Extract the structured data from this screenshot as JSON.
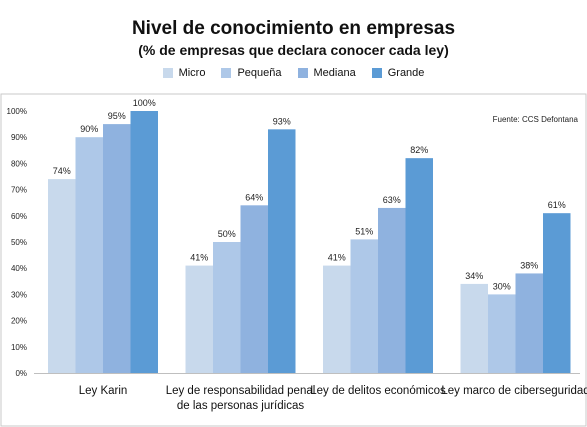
{
  "chart_data": {
    "type": "bar",
    "title": "Nivel de conocimiento en empresas",
    "subtitle": "(% de empresas que declara conocer cada ley)",
    "source": "Fuente: CCS Defontana",
    "categories": [
      [
        "Ley Karin"
      ],
      [
        "Ley de responsabilidad penal",
        "de las personas jurídicas"
      ],
      [
        "Ley de delitos económicos"
      ],
      [
        "Ley marco de ciberseguridad"
      ]
    ],
    "series": [
      {
        "name": "Micro",
        "color": "#c8d9ec",
        "values": [
          74,
          41,
          41,
          34
        ]
      },
      {
        "name": "Pequeña",
        "color": "#aec8e8",
        "values": [
          90,
          50,
          51,
          30
        ]
      },
      {
        "name": "Mediana",
        "color": "#8fb2df",
        "values": [
          95,
          64,
          63,
          38
        ]
      },
      {
        "name": "Grande",
        "color": "#5b9bd5",
        "values": [
          100,
          93,
          82,
          61
        ]
      }
    ],
    "ylim": [
      0,
      100
    ],
    "yticks": [
      "0%",
      "10%",
      "20%",
      "30%",
      "40%",
      "50%",
      "60%",
      "70%",
      "80%",
      "90%",
      "100%"
    ],
    "value_suffix": "%",
    "grid": false,
    "legend_position": "top"
  }
}
